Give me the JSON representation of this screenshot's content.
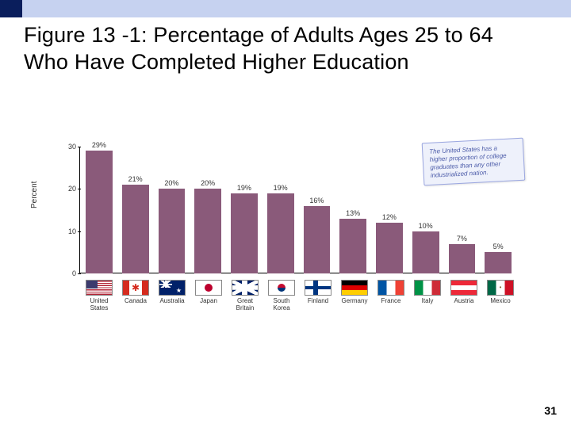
{
  "accent": {
    "dark_color": "#0a1e5c",
    "light_color": "#c6d2f0"
  },
  "title": "Figure 13 -1: Percentage of Adults Ages 25 to 64 Who Have Completed Higher Education",
  "chart": {
    "type": "bar",
    "ylabel": "Percent",
    "ylim": [
      0,
      30
    ],
    "yticks": [
      0,
      10,
      20,
      30
    ],
    "bar_color": "#8a5a7a",
    "background_color": "#ffffff",
    "axis_color": "#000000",
    "label_fontsize": 9,
    "tick_fontsize": 9,
    "flaglabel_fontsize": 8,
    "callout": "The United States has a higher proportion of college graduates than any other industrialized nation.",
    "callout_bg": "#eef1fb",
    "callout_border": "#9aa6e0",
    "callout_text_color": "#4a5aa8",
    "series": [
      {
        "country": "United\nStates",
        "value": 29,
        "label": "29%",
        "flag": "us"
      },
      {
        "country": "Canada",
        "value": 21,
        "label": "21%",
        "flag": "ca"
      },
      {
        "country": "Australia",
        "value": 20,
        "label": "20%",
        "flag": "au"
      },
      {
        "country": "Japan",
        "value": 20,
        "label": "20%",
        "flag": "jp"
      },
      {
        "country": "Great\nBritain",
        "value": 19,
        "label": "19%",
        "flag": "gb"
      },
      {
        "country": "South\nKorea",
        "value": 19,
        "label": "19%",
        "flag": "kr"
      },
      {
        "country": "Finland",
        "value": 16,
        "label": "16%",
        "flag": "fi"
      },
      {
        "country": "Germany",
        "value": 13,
        "label": "13%",
        "flag": "de"
      },
      {
        "country": "France",
        "value": 12,
        "label": "12%",
        "flag": "fr"
      },
      {
        "country": "Italy",
        "value": 10,
        "label": "10%",
        "flag": "it"
      },
      {
        "country": "Austria",
        "value": 7,
        "label": "7%",
        "flag": "at"
      },
      {
        "country": "Mexico",
        "value": 5,
        "label": "5%",
        "flag": "mx"
      }
    ]
  },
  "page_number": "31"
}
